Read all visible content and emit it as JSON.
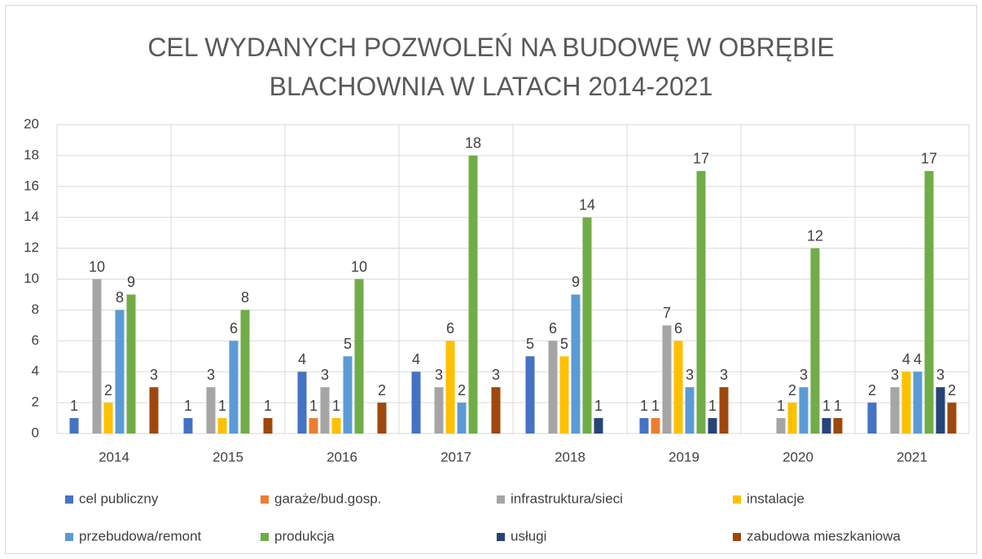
{
  "chart_data": {
    "type": "bar",
    "title": "CEL WYDANYCH POZWOLEŃ NA BUDOWĘ W OBRĘBIE BLACHOWNIA W LATACH 2014-2021",
    "categories": [
      "2014",
      "2015",
      "2016",
      "2017",
      "2018",
      "2019",
      "2020",
      "2021"
    ],
    "series": [
      {
        "name": "cel publiczny",
        "color": "#4472c4",
        "values": [
          1,
          1,
          4,
          4,
          5,
          1,
          null,
          2
        ]
      },
      {
        "name": "garaże/bud.gosp.",
        "color": "#ed7d31",
        "values": [
          null,
          null,
          1,
          null,
          null,
          1,
          null,
          null
        ]
      },
      {
        "name": "infrastruktura/sieci",
        "color": "#a5a5a5",
        "values": [
          10,
          3,
          3,
          3,
          6,
          7,
          1,
          3
        ]
      },
      {
        "name": "instalacje",
        "color": "#ffc000",
        "values": [
          2,
          1,
          1,
          6,
          5,
          6,
          2,
          4
        ]
      },
      {
        "name": "przebudowa/remont",
        "color": "#5b9bd5",
        "values": [
          8,
          6,
          5,
          2,
          9,
          3,
          3,
          4
        ]
      },
      {
        "name": "produkcja",
        "color": "#70ad47",
        "values": [
          9,
          8,
          10,
          18,
          14,
          17,
          12,
          17
        ]
      },
      {
        "name": "usługi",
        "color": "#264478",
        "values": [
          null,
          null,
          null,
          null,
          1,
          1,
          1,
          3
        ]
      },
      {
        "name": "zabudowa mieszkaniowa",
        "color": "#9e480e",
        "values": [
          3,
          1,
          2,
          3,
          null,
          3,
          1,
          2
        ]
      }
    ],
    "ylim": [
      0,
      20
    ],
    "yticks": [
      0,
      2,
      4,
      6,
      8,
      10,
      12,
      14,
      16,
      18,
      20
    ],
    "grid": true,
    "legend": "bottom"
  }
}
